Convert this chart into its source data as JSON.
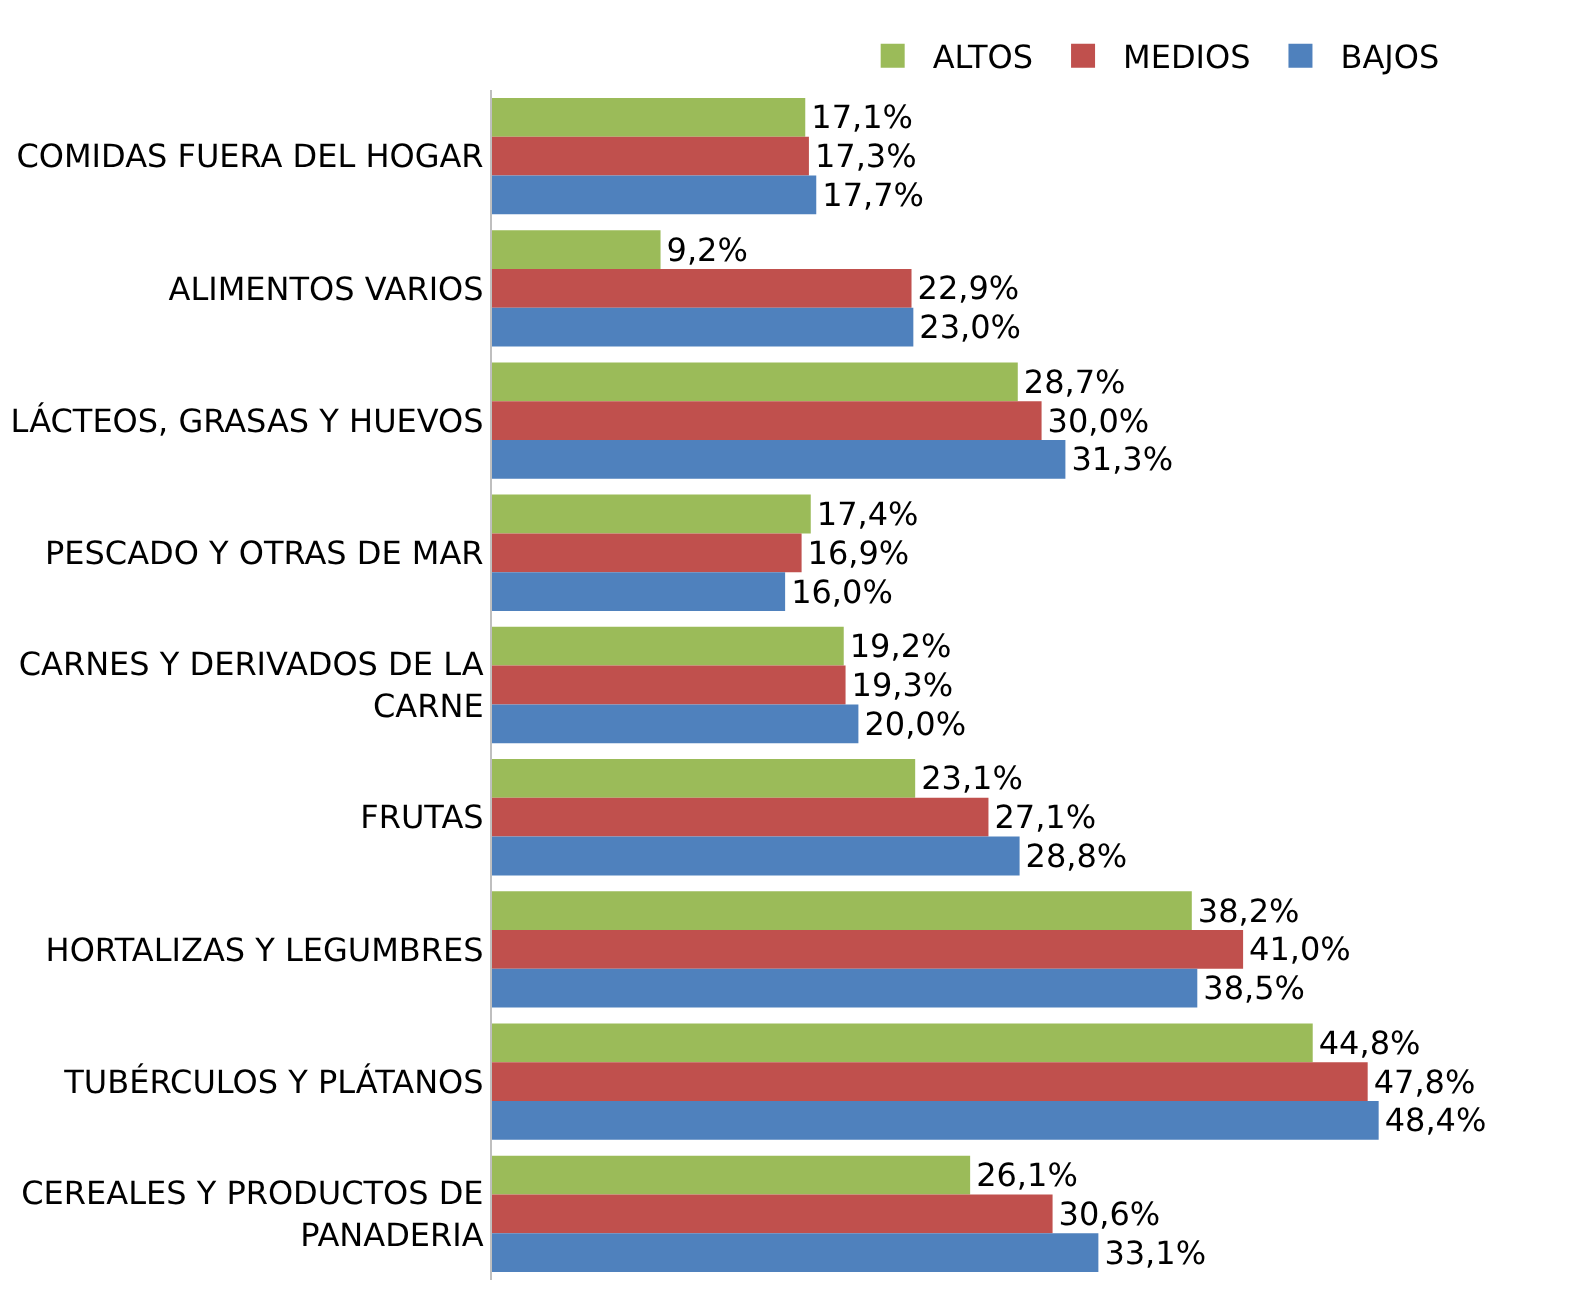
{
  "chart_data": {
    "type": "bar",
    "orientation": "horizontal",
    "legend": "top",
    "tick_labels": "y",
    "categories": [
      "COMIDAS FUERA DEL HOGAR",
      "ALIMENTOS VARIOS",
      "LÁCTEOS, GRASAS Y HUEVOS",
      "PESCADO Y OTRAS DE MAR",
      "CARNES Y DERIVADOS DE LA\nCARNE",
      "FRUTAS",
      "HORTALIZAS Y LEGUMBRES",
      "TUBÉRCULOS Y PLÁTANOS",
      "CEREALES Y PRODUCTOS DE\nPANADERIA"
    ],
    "series": [
      {
        "name": "ALTOS",
        "color": "#9bbb59",
        "values": [
          17.1,
          9.2,
          28.7,
          17.4,
          19.2,
          23.1,
          38.2,
          44.8,
          26.1
        ],
        "value_labels": [
          "17,1%",
          "9,2%",
          "28,7%",
          "17,4%",
          "19,2%",
          "23,1%",
          "38,2%",
          "44,8%",
          "26,1%"
        ]
      },
      {
        "name": "MEDIOS",
        "color": "#c0504d",
        "values": [
          17.3,
          22.9,
          30.0,
          16.9,
          19.3,
          27.1,
          41.0,
          47.8,
          30.6
        ],
        "value_labels": [
          "17,3%",
          "22,9%",
          "30,0%",
          "16,9%",
          "19,3%",
          "27,1%",
          "41,0%",
          "47,8%",
          "30,6%"
        ]
      },
      {
        "name": "BAJOS",
        "color": "#4f81bd",
        "values": [
          17.7,
          23.0,
          31.3,
          16.0,
          20.0,
          28.8,
          38.5,
          48.4,
          33.1
        ],
        "value_labels": [
          "17,7%",
          "23,0%",
          "31,3%",
          "16,0%",
          "20,0%",
          "28,8%",
          "38,5%",
          "48,4%",
          "33,1%"
        ]
      }
    ]
  }
}
